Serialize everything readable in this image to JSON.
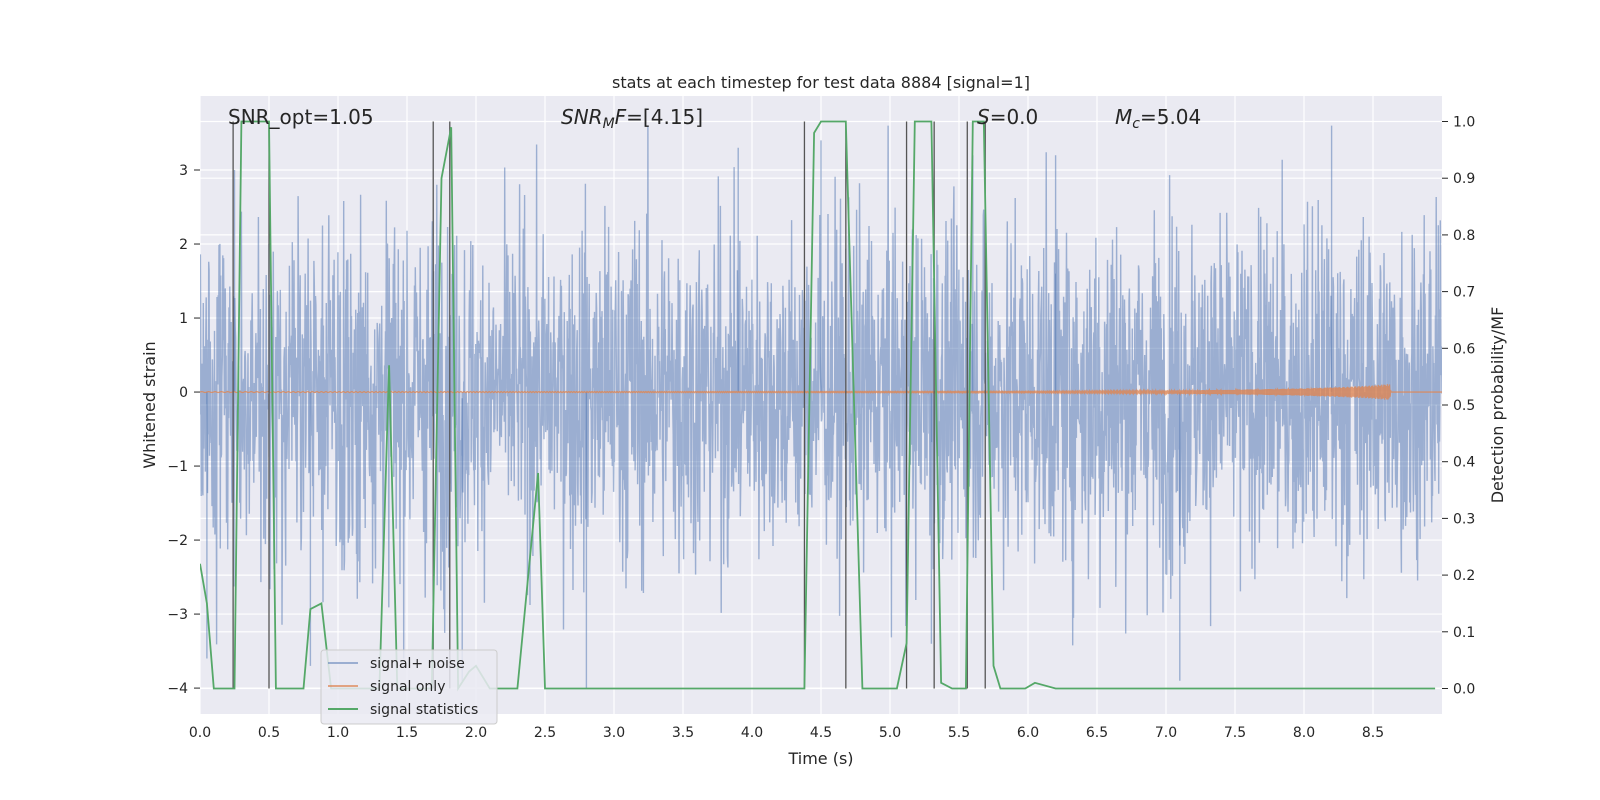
{
  "chart_data": {
    "type": "line",
    "title": "stats at each timestep for test data 8884 [signal=1]",
    "xlabel": "Time (s)",
    "ylabel": "Whitened strain",
    "y2label": "Detection probability/MF",
    "xlim": [
      0.0,
      9.0
    ],
    "ylim": [
      -4.35,
      4.0
    ],
    "y2lim": [
      -0.045,
      1.045
    ],
    "grid": true,
    "x_ticks": [
      0.0,
      0.5,
      1.0,
      1.5,
      2.0,
      2.5,
      3.0,
      3.5,
      4.0,
      4.5,
      5.0,
      5.5,
      6.0,
      6.5,
      7.0,
      7.5,
      8.0,
      8.5
    ],
    "x_tick_labels": [
      "0.0",
      "0.5",
      "1.0",
      "1.5",
      "2.0",
      "2.5",
      "3.0",
      "3.5",
      "4.0",
      "4.5",
      "5.0",
      "5.5",
      "6.0",
      "6.5",
      "7.0",
      "7.5",
      "8.0",
      "8.5"
    ],
    "y_ticks": [
      -4,
      -3,
      -2,
      -1,
      0,
      1,
      2,
      3
    ],
    "y_tick_labels": [
      "−4",
      "−3",
      "−2",
      "−1",
      "0",
      "1",
      "2",
      "3"
    ],
    "y2_ticks": [
      0.0,
      0.1,
      0.2,
      0.3,
      0.4,
      0.5,
      0.6,
      0.7,
      0.8,
      0.9,
      1.0
    ],
    "y2_tick_labels": [
      "0.0",
      "0.1",
      "0.2",
      "0.3",
      "0.4",
      "0.5",
      "0.6",
      "0.7",
      "0.8",
      "0.9",
      "1.0"
    ],
    "legend": {
      "position": "lower-left",
      "entries": [
        "signal+ noise",
        "signal only",
        "signal statistics"
      ]
    },
    "annotations": {
      "snr_opt": "SNR_opt=1.05",
      "snr_mf_label": "SNR",
      "snr_mf_sub": "M",
      "snr_mf_f": "F",
      "snr_mf_value": "=[4.15]",
      "s_label": "S",
      "s_value": "=0.0",
      "mc_label": "M",
      "mc_sub": "c",
      "mc_value": "=5.04"
    },
    "series": [
      {
        "name": "signal+ noise",
        "axis": "left",
        "color": "#4c72b0",
        "description": "whitened strain noise, amplitude spread roughly -3.6 to 3.6",
        "envelope_upper": [
          1.8,
          1.9,
          2.1,
          2.2,
          2.0,
          1.9,
          2.1,
          2.3,
          2.2,
          2.0,
          2.1,
          2.2,
          2.0,
          2.1,
          2.3,
          2.2,
          2.1,
          2.0,
          2.2,
          2.1
        ],
        "envelope_lower": [
          -2.0,
          -2.1,
          -2.2,
          -2.3,
          -2.0,
          -2.1,
          -2.4,
          -2.2,
          -2.1,
          -2.0,
          -2.2,
          -2.3,
          -2.1,
          -2.2,
          -2.4,
          -2.2,
          -2.1,
          -2.3,
          -2.2,
          -2.1
        ],
        "spikes": [
          [
            0.05,
            -3.6
          ],
          [
            0.25,
            3.0
          ],
          [
            0.5,
            2.0
          ],
          [
            0.8,
            -3.7
          ],
          [
            1.9,
            -3.9
          ],
          [
            2.8,
            -4.0
          ],
          [
            3.9,
            3.3
          ],
          [
            4.5,
            3.4
          ],
          [
            5.3,
            -3.4
          ],
          [
            5.6,
            3.2
          ],
          [
            6.2,
            3.2
          ],
          [
            7.1,
            -3.9
          ],
          [
            8.2,
            3.6
          ]
        ]
      },
      {
        "name": "signal only",
        "axis": "left",
        "color": "#dd8452",
        "description": "chirp signal near zero, growing to about ±0.1 near t=8.6 s",
        "x": [
          0.0,
          6.0,
          7.0,
          7.5,
          8.0,
          8.3,
          8.5,
          8.62,
          8.63
        ],
        "amp": [
          0.005,
          0.01,
          0.02,
          0.03,
          0.05,
          0.07,
          0.09,
          0.11,
          0.0
        ]
      },
      {
        "name": "signal statistics",
        "axis": "right",
        "color": "#55a868",
        "x": [
          0.0,
          0.05,
          0.1,
          0.18,
          0.25,
          0.3,
          0.35,
          0.45,
          0.5,
          0.55,
          0.75,
          0.8,
          0.88,
          0.95,
          1.3,
          1.37,
          1.43,
          1.68,
          1.75,
          1.82,
          1.87,
          1.95,
          2.0,
          2.1,
          2.3,
          2.45,
          2.5,
          4.38,
          4.45,
          4.5,
          4.68,
          4.8,
          5.05,
          5.12,
          5.18,
          5.3,
          5.37,
          5.45,
          5.55,
          5.6,
          5.68,
          5.75,
          5.8,
          5.85,
          5.98,
          6.05,
          6.2,
          8.95
        ],
        "y": [
          0.22,
          0.15,
          0.0,
          0.0,
          0.0,
          1.0,
          1.0,
          1.0,
          1.0,
          0.0,
          0.0,
          0.14,
          0.15,
          0.0,
          0.0,
          0.57,
          0.0,
          0.0,
          0.9,
          0.99,
          0.0,
          0.03,
          0.04,
          0.0,
          0.0,
          0.38,
          0.0,
          0.0,
          0.98,
          1.0,
          1.0,
          0.0,
          0.0,
          0.08,
          1.0,
          1.0,
          0.01,
          0.0,
          0.0,
          1.0,
          1.0,
          0.04,
          0.0,
          0.0,
          0.0,
          0.01,
          0.0,
          0.0
        ]
      }
    ],
    "vertical_markers": [
      0.24,
      0.5,
      1.69,
      1.81,
      4.38,
      4.68,
      5.12,
      5.32,
      5.56,
      5.69
    ]
  }
}
